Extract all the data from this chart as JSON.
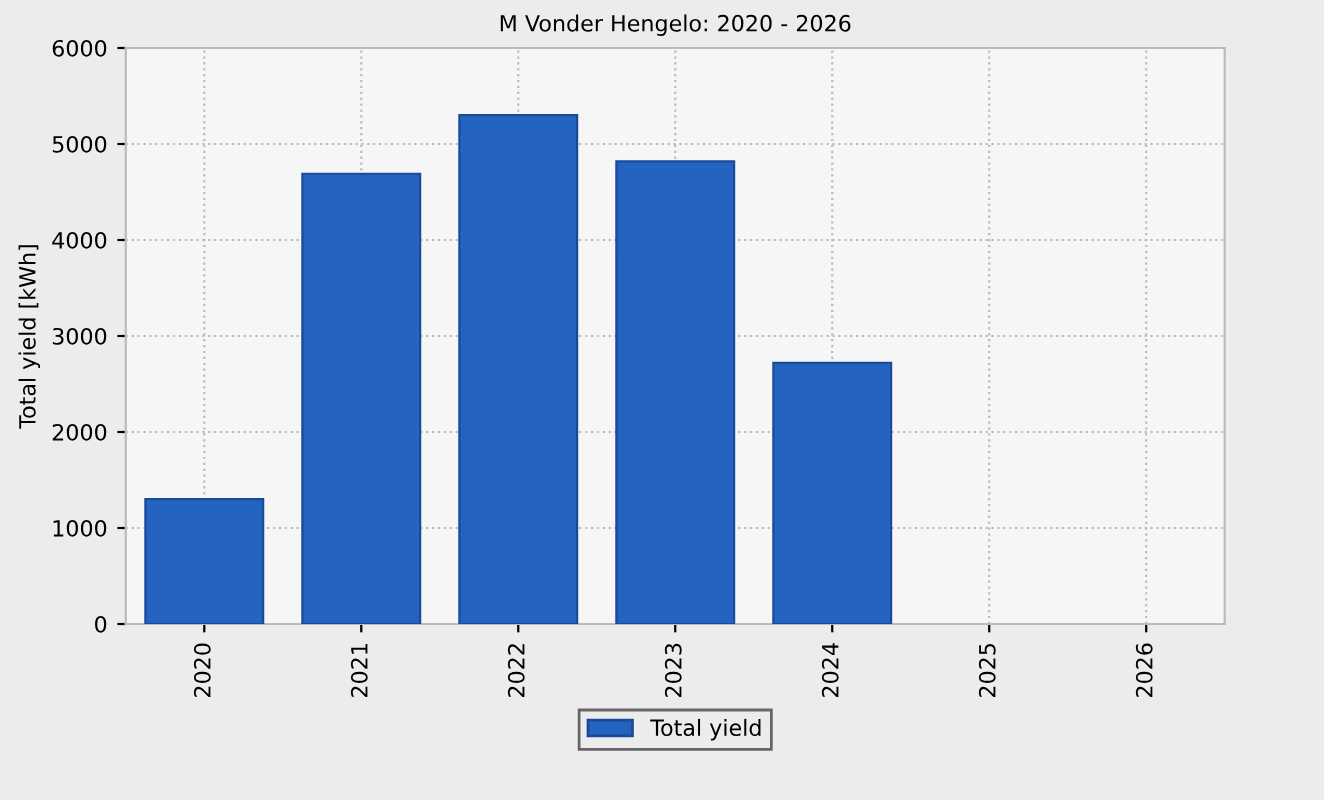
{
  "chart_data": {
    "type": "bar",
    "title": "M Vonder Hengelo: 2020 - 2026",
    "ylabel": "Total yield [kWh]",
    "categories": [
      "2020",
      "2021",
      "2022",
      "2023",
      "2024",
      "2025",
      "2026"
    ],
    "series": [
      {
        "name": "Total yield",
        "color": "#2563c0",
        "values": [
          1300,
          4690,
          5300,
          4820,
          2720,
          null,
          null
        ]
      }
    ],
    "ylim": [
      0,
      6000
    ],
    "yticks": [
      0,
      1000,
      2000,
      3000,
      4000,
      5000,
      6000
    ],
    "grid": true,
    "legend": "bottom"
  }
}
